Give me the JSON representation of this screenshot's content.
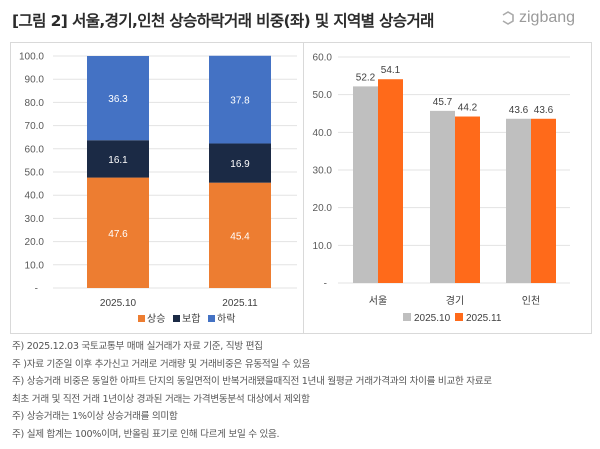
{
  "header": {
    "title": "[그림 2] 서울,경기,인천 상승하락거래 비중(좌) 및 지역별 상승거래",
    "logo": "zigbang"
  },
  "colors": {
    "up": "#ED7D31",
    "flat": "#1B2A45",
    "down": "#4472C4",
    "oct": "#BFBFBF",
    "nov": "#FF6A1A"
  },
  "chart_data": [
    {
      "type": "bar",
      "stacked": true,
      "categories": [
        "2025.10",
        "2025.11"
      ],
      "series": [
        {
          "name": "상승",
          "values": [
            47.6,
            45.4
          ]
        },
        {
          "name": "보합",
          "values": [
            16.1,
            16.9
          ]
        },
        {
          "name": "하락",
          "values": [
            36.3,
            37.8
          ]
        }
      ],
      "ylim": [
        0,
        100
      ],
      "yticks": [
        "-",
        "10.0",
        "20.0",
        "30.0",
        "40.0",
        "50.0",
        "60.0",
        "70.0",
        "80.0",
        "90.0",
        "100.0"
      ],
      "grid": true,
      "legend": "bottom"
    },
    {
      "type": "bar",
      "categories": [
        "서울",
        "경기",
        "인천"
      ],
      "series": [
        {
          "name": "2025.10",
          "values": [
            52.2,
            45.7,
            43.6
          ]
        },
        {
          "name": "2025.11",
          "values": [
            54.1,
            44.2,
            43.6
          ]
        }
      ],
      "ylim": [
        0,
        60
      ],
      "yticks": [
        "-",
        "10.0",
        "20.0",
        "30.0",
        "40.0",
        "50.0",
        "60.0"
      ],
      "grid": true,
      "legend": "bottom"
    }
  ],
  "notes": [
    "주) 2025.12.03 국토교통부 매매 실거래가 자료 기준, 직방 편집",
    "주 )자료 기준일 이후 추가신고 거래로 거래량 및 거래비중은 유동적일 수 있음",
    "주) 상승거래 비중은 동일한 아파트 단지의 동일면적이 반복거래됐을때직전 1년내 월평균 거래가격과의 차이를 비교한 자료로",
    "최초 거래 및 직전 거래 1년이상 경과된 거래는 가격변동분석 대상에서 제외함",
    "주) 상승거래는 1%이상 상승거래를 의미함",
    "주) 실제 합계는 100%이며, 반올림 표기로 인해 다르게 보일 수 있음."
  ]
}
